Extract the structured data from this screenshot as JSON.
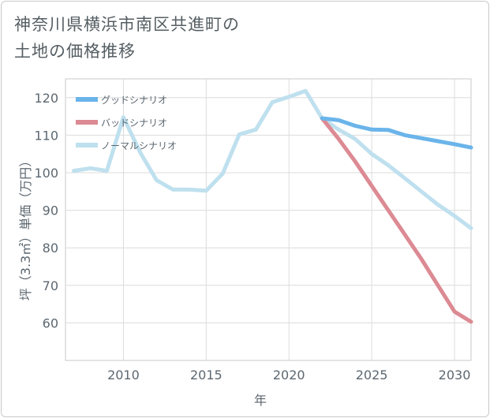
{
  "chart_data": {
    "type": "line",
    "title": "神奈川県横浜市南区共進町の\n土地の価格推移",
    "xlabel": "年",
    "ylabel": "坪（3.3㎡）単価（万円）",
    "xlim": [
      2006.5,
      2031
    ],
    "ylim": [
      50,
      125
    ],
    "xticks": [
      2010,
      2015,
      2020,
      2025,
      2030
    ],
    "yticks": [
      60,
      70,
      80,
      90,
      100,
      110,
      120
    ],
    "grid": true,
    "legend_position": "top-left",
    "series": [
      {
        "name": "グッドシナリオ",
        "color": "#6ab4ea",
        "x": [
          2022,
          2023,
          2024,
          2025,
          2026,
          2027,
          2028,
          2029,
          2030,
          2031
        ],
        "values": [
          114.5,
          114.0,
          112.5,
          111.5,
          111.4,
          110.0,
          109.2,
          108.4,
          107.6,
          106.7
        ]
      },
      {
        "name": "バッドシナリオ",
        "color": "#dc8a93",
        "x": [
          2022,
          2023,
          2024,
          2025,
          2026,
          2027,
          2028,
          2029,
          2030,
          2031
        ],
        "values": [
          114.5,
          109.0,
          103.0,
          96.5,
          90.0,
          83.5,
          77.0,
          70.0,
          63.0,
          60.3
        ]
      },
      {
        "name": "ノーマルシナリオ",
        "color": "#bfe0ee",
        "x": [
          2007,
          2008,
          2009,
          2010,
          2011,
          2012,
          2013,
          2014,
          2015,
          2016,
          2017,
          2018,
          2019,
          2020,
          2021,
          2022,
          2023,
          2024,
          2025,
          2026,
          2027,
          2028,
          2029,
          2030,
          2031
        ],
        "values": [
          100.5,
          101.2,
          100.5,
          114.8,
          105.5,
          98.0,
          95.5,
          95.5,
          95.2,
          99.8,
          110.2,
          111.5,
          118.8,
          120.2,
          121.8,
          114.5,
          111.5,
          109.0,
          105.0,
          102.0,
          98.5,
          95.0,
          91.5,
          88.5,
          85.2
        ]
      }
    ]
  }
}
